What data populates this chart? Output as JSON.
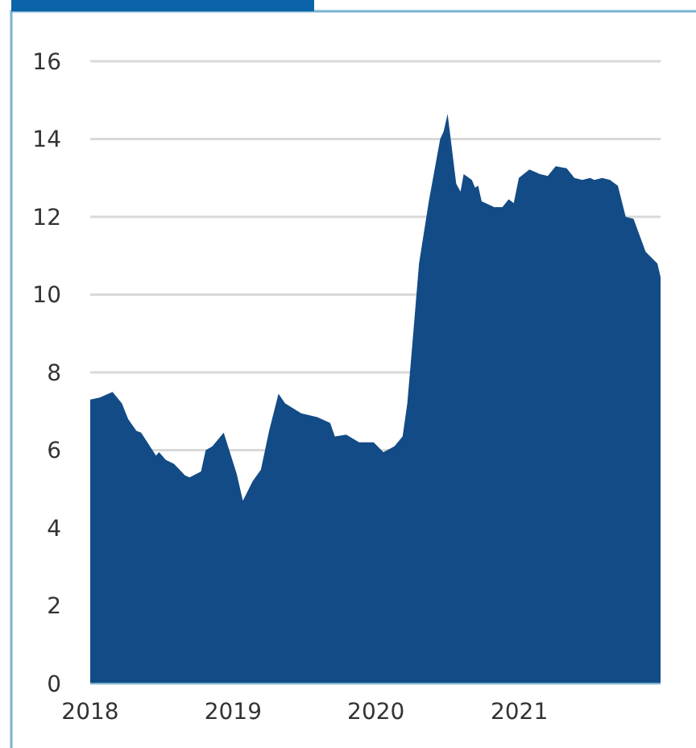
{
  "chart_data": {
    "type": "area",
    "color": "#134b87",
    "x": [
      "2018-01-01",
      "2018-01-25",
      "2018-02-27",
      "2018-03-23",
      "2018-04-08",
      "2018-04-29",
      "2018-05-11",
      "2018-06-18",
      "2018-06-26",
      "2018-07-13",
      "2018-08-03",
      "2018-08-31",
      "2018-09-12",
      "2018-10-11",
      "2018-10-23",
      "2018-11-09",
      "2018-12-08",
      "2019-01-10",
      "2019-01-26",
      "2019-02-20",
      "2019-03-13",
      "2019-04-03",
      "2019-04-27",
      "2019-05-14",
      "2019-06-24",
      "2019-08-04",
      "2019-09-06",
      "2019-09-18",
      "2019-10-17",
      "2019-11-19",
      "2019-12-26",
      "2020-01-20",
      "2020-02-17",
      "2020-03-09",
      "2020-03-21",
      "2020-04-01",
      "2020-04-20",
      "2020-05-15",
      "2020-06-13",
      "2020-06-22",
      "2020-07-02",
      "2020-07-24",
      "2020-08-04",
      "2020-08-12",
      "2020-09-02",
      "2020-09-10",
      "2020-09-18",
      "2020-09-27",
      "2020-10-29",
      "2020-11-19",
      "2020-12-05",
      "2020-12-18",
      "2020-12-31",
      "2021-01-27",
      "2021-02-23",
      "2021-03-15",
      "2021-04-04",
      "2021-05-02",
      "2021-05-22",
      "2021-06-11",
      "2021-07-01",
      "2021-07-12",
      "2021-08-01",
      "2021-08-21",
      "2021-09-10",
      "2021-09-30",
      "2021-10-20",
      "2021-11-20",
      "2021-12-20",
      "2021-12-28"
    ],
    "values": [
      7.3,
      7.35,
      7.5,
      7.2,
      6.8,
      6.5,
      6.45,
      5.86,
      5.95,
      5.75,
      5.65,
      5.35,
      5.3,
      5.45,
      6.0,
      6.1,
      6.45,
      5.4,
      4.7,
      5.2,
      5.5,
      6.5,
      7.45,
      7.2,
      6.95,
      6.85,
      6.7,
      6.35,
      6.4,
      6.2,
      6.2,
      5.95,
      6.1,
      6.35,
      7.2,
      8.5,
      10.8,
      12.4,
      14.0,
      14.2,
      14.65,
      12.85,
      12.65,
      13.1,
      12.95,
      12.75,
      12.8,
      12.4,
      12.25,
      12.25,
      12.45,
      12.35,
      13.0,
      13.22,
      13.1,
      13.05,
      13.3,
      13.25,
      13.0,
      12.95,
      13.0,
      12.95,
      13.0,
      12.95,
      12.8,
      12.0,
      11.95,
      11.1,
      10.8,
      10.45
    ],
    "xlim": [
      "2018-01-01",
      "2021-12-28"
    ],
    "xticks": [
      {
        "value": "2018-01-01",
        "label": "2018"
      },
      {
        "value": "2019-01-01",
        "label": "2019"
      },
      {
        "value": "2020-01-01",
        "label": "2020"
      },
      {
        "value": "2021-01-01",
        "label": "2021"
      }
    ],
    "ylim": [
      0,
      16
    ],
    "yticks": [
      0,
      2,
      4,
      6,
      8,
      10,
      12,
      14,
      16
    ],
    "grid": "y"
  }
}
